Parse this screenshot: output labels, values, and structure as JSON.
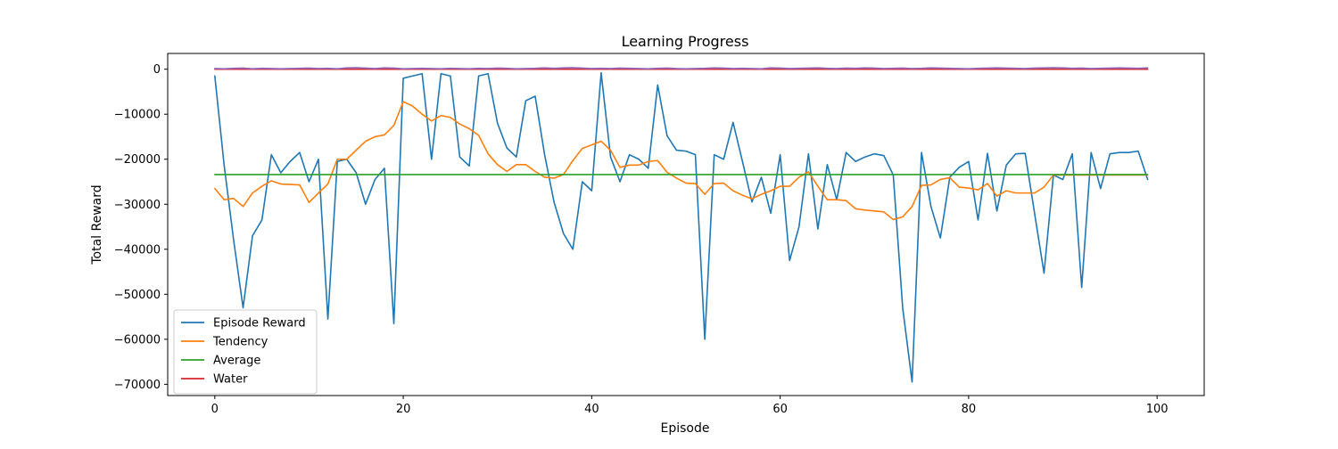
{
  "chart_data": {
    "type": "line",
    "title": "Learning Progress",
    "xlabel": "Episode",
    "ylabel": "Total Reward",
    "xlim": [
      -5,
      105
    ],
    "ylim": [
      -72500,
      3500
    ],
    "x_ticks": [
      0,
      20,
      40,
      60,
      80,
      100
    ],
    "y_ticks": [
      0,
      -10000,
      -20000,
      -30000,
      -40000,
      -50000,
      -60000,
      -70000
    ],
    "grid": false,
    "legend_position": "lower-left",
    "series": [
      {
        "name": "Episode Reward",
        "color": "#1f77b4",
        "values": [
          -1500,
          -21500,
          -38000,
          -53000,
          -37000,
          -33500,
          -19000,
          -23000,
          -20500,
          -18500,
          -25000,
          -20000,
          -55500,
          -20500,
          -20000,
          -23000,
          -30000,
          -24500,
          -22000,
          -56500,
          -2000,
          -1500,
          -1000,
          -20000,
          -1000,
          -1500,
          -19500,
          -21500,
          -1500,
          -1000,
          -12000,
          -17500,
          -19500,
          -7000,
          -6000,
          -19000,
          -29500,
          -36500,
          -40000,
          -25000,
          -27000,
          -800,
          -19500,
          -25000,
          -19000,
          -20000,
          -22000,
          -3500,
          -14800,
          -18000,
          -18200,
          -19000,
          -60000,
          -19000,
          -20000,
          -11800,
          -20500,
          -29500,
          -24000,
          -32000,
          -19000,
          -42500,
          -35000,
          -18800,
          -35500,
          -21200,
          -29000,
          -18500,
          -20500,
          -19500,
          -18800,
          -19200,
          -23500,
          -53000,
          -69500,
          -18500,
          -30500,
          -37500,
          -24000,
          -21800,
          -20500,
          -33500,
          -18700,
          -31500,
          -21300,
          -18800,
          -18700,
          -32000,
          -45300,
          -23500,
          -24500,
          -18800,
          -48500,
          -18500,
          -26500,
          -18800,
          -18500,
          -18500,
          -18200,
          -24500
        ]
      },
      {
        "name": "Tendency",
        "color": "#ff7f0e",
        "values": [
          -26500,
          -29000,
          -28700,
          -30500,
          -27500,
          -26000,
          -24800,
          -25500,
          -25600,
          -25700,
          -29600,
          -27500,
          -25500,
          -20000,
          -20000,
          -18000,
          -16000,
          -15000,
          -14600,
          -12500,
          -7200,
          -8200,
          -10000,
          -11500,
          -10300,
          -10700,
          -12200,
          -13200,
          -14700,
          -18800,
          -21200,
          -22700,
          -21200,
          -21200,
          -22700,
          -24000,
          -24200,
          -23400,
          -20300,
          -17600,
          -16800,
          -16000,
          -18000,
          -21800,
          -21300,
          -21300,
          -20500,
          -20300,
          -22900,
          -24200,
          -25300,
          -25400,
          -27800,
          -25400,
          -25300,
          -27000,
          -28000,
          -28800,
          -27800,
          -27000,
          -26000,
          -26000,
          -24000,
          -22800,
          -26000,
          -29000,
          -29000,
          -29200,
          -31000,
          -31300,
          -31500,
          -31700,
          -33400,
          -32800,
          -30500,
          -25800,
          -25700,
          -24500,
          -24100,
          -26200,
          -26400,
          -26800,
          -25400,
          -28200,
          -27000,
          -27500,
          -27500,
          -27500,
          -26200,
          -23500,
          -23500,
          -23500,
          -23500,
          -23500,
          -23500,
          -23500,
          -23500,
          -23500,
          -23500,
          -23500
        ]
      },
      {
        "name": "Average",
        "color": "#2ca02c",
        "values": [
          -23400,
          -23400,
          -23400,
          -23400,
          -23400,
          -23400,
          -23400,
          -23400,
          -23400,
          -23400,
          -23400,
          -23400,
          -23400,
          -23400,
          -23400,
          -23400,
          -23400,
          -23400,
          -23400,
          -23400,
          -23400,
          -23400,
          -23400,
          -23400,
          -23400,
          -23400,
          -23400,
          -23400,
          -23400,
          -23400,
          -23400,
          -23400,
          -23400,
          -23400,
          -23400,
          -23400,
          -23400,
          -23400,
          -23400,
          -23400,
          -23400,
          -23400,
          -23400,
          -23400,
          -23400,
          -23400,
          -23400,
          -23400,
          -23400,
          -23400,
          -23400,
          -23400,
          -23400,
          -23400,
          -23400,
          -23400,
          -23400,
          -23400,
          -23400,
          -23400,
          -23400,
          -23400,
          -23400,
          -23400,
          -23400,
          -23400,
          -23400,
          -23400,
          -23400,
          -23400,
          -23400,
          -23400,
          -23400,
          -23400,
          -23400,
          -23400,
          -23400,
          -23400,
          -23400,
          -23400,
          -23400,
          -23400,
          -23400,
          -23400,
          -23400,
          -23400,
          -23400,
          -23400,
          -23400,
          -23400,
          -23400,
          -23400,
          -23400,
          -23400,
          -23400,
          -23400,
          -23400,
          -23400,
          -23400,
          -23400
        ]
      },
      {
        "name": "Water",
        "color": "#d62728",
        "values": [
          0,
          0,
          0,
          0,
          0,
          0,
          0,
          0,
          0,
          0,
          0,
          0,
          0,
          0,
          0,
          0,
          0,
          0,
          0,
          0,
          0,
          0,
          0,
          0,
          0,
          0,
          0,
          0,
          0,
          0,
          0,
          0,
          0,
          0,
          0,
          0,
          0,
          0,
          0,
          0,
          0,
          0,
          0,
          0,
          0,
          0,
          0,
          0,
          0,
          0,
          0,
          0,
          0,
          0,
          0,
          0,
          0,
          0,
          0,
          0,
          0,
          0,
          0,
          0,
          0,
          0,
          0,
          0,
          0,
          0,
          0,
          0,
          0,
          0,
          0,
          0,
          0,
          0,
          0,
          0,
          0,
          0,
          0,
          0,
          0,
          0,
          0,
          0,
          0,
          0,
          0,
          0,
          0,
          0,
          0,
          0,
          0,
          0,
          0,
          0
        ]
      },
      {
        "name": "",
        "color": "#9467bd",
        "values": [
          150,
          100,
          200,
          250,
          100,
          200,
          150,
          100,
          150,
          200,
          250,
          150,
          200,
          100,
          300,
          350,
          250,
          150,
          300,
          250,
          100,
          150,
          200,
          150,
          100,
          200,
          150,
          100,
          200,
          150,
          250,
          200,
          100,
          150,
          200,
          300,
          200,
          300,
          350,
          250,
          150,
          200,
          150,
          250,
          200,
          150,
          100,
          200,
          250,
          150,
          100,
          150,
          200,
          300,
          250,
          150,
          200,
          150,
          100,
          300,
          250,
          150,
          200,
          250,
          300,
          200,
          150,
          250,
          200,
          300,
          250,
          150,
          200,
          250,
          150,
          200,
          300,
          250,
          200,
          150,
          100,
          200,
          250,
          300,
          250,
          200,
          150,
          250,
          300,
          350,
          300,
          200,
          250,
          150,
          200,
          250,
          300,
          250,
          200,
          300
        ]
      }
    ]
  }
}
